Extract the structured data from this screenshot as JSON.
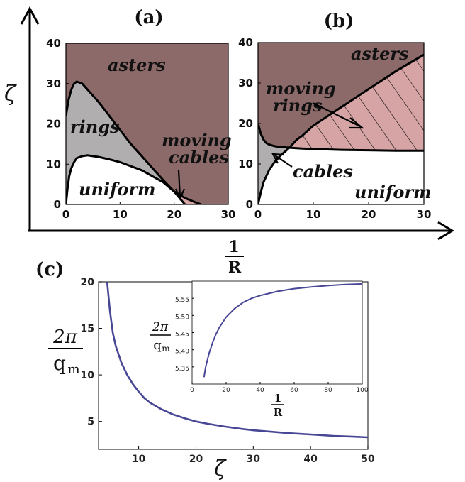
{
  "panel_labels": {
    "a": "(a)",
    "b": "(b)",
    "c": "(c)"
  },
  "axes": {
    "zeta": "ζ",
    "one": "1",
    "R": "R",
    "two_pi": "2π",
    "q_m": "q",
    "q_m_sub": "m"
  },
  "regions": {
    "asters": "asters",
    "rings": "rings",
    "uniform": "uniform",
    "moving": "moving",
    "cables": "cables",
    "moving_rings_line2": "rings"
  },
  "colors": {
    "asters": "#8c6a69",
    "rings_cables": "#b0aeae",
    "uniform": "#ffffff",
    "moving": "#d6a4a5",
    "curve": "#474796",
    "boundary": "#000000"
  },
  "chart_data": [
    {
      "id": "a",
      "type": "area",
      "title": "(a)",
      "xlim": [
        0,
        30
      ],
      "ylim": [
        0,
        40
      ],
      "xticks": [
        "0",
        "10",
        "20",
        "30"
      ],
      "yticks": [
        "0",
        "10",
        "20",
        "30",
        "40"
      ],
      "upper_boundary": {
        "x": [
          0,
          0.5,
          1,
          1.5,
          2,
          3,
          4,
          6,
          8,
          10,
          12,
          14,
          16,
          18,
          20,
          22,
          24,
          25
        ],
        "y": [
          22,
          26,
          28.5,
          30,
          30.5,
          30,
          28.5,
          25.5,
          22,
          18.5,
          15,
          12,
          9,
          6,
          3.2,
          1.6,
          0.5,
          0
        ]
      },
      "lower_boundary": {
        "x": [
          0,
          0.3,
          0.6,
          1,
          1.5,
          2,
          3,
          4,
          6,
          8,
          10,
          12,
          14,
          16,
          18,
          20,
          21,
          22
        ],
        "y": [
          0,
          4,
          7,
          9,
          10.5,
          11.5,
          12,
          12.2,
          11.8,
          11.2,
          10.5,
          9.5,
          8.5,
          7,
          5.5,
          3.2,
          1.6,
          0
        ]
      },
      "regions": [
        "asters",
        "rings",
        "uniform",
        "moving cables"
      ]
    },
    {
      "id": "b",
      "type": "area",
      "title": "(b)",
      "xlim": [
        0,
        30
      ],
      "ylim": [
        0,
        40
      ],
      "xticks": [
        "0",
        "10",
        "20",
        "30"
      ],
      "yticks": [
        "0",
        "10",
        "20",
        "30",
        "40"
      ],
      "aster_boundary": {
        "x": [
          0,
          0.5,
          1,
          1.5,
          2,
          3,
          4,
          5,
          6,
          8,
          10,
          15,
          20,
          25,
          30
        ],
        "y": [
          20,
          17.5,
          16,
          15.2,
          14.8,
          14.4,
          14.2,
          14.1,
          14,
          13.8,
          13.7,
          13.5,
          13.4,
          13.3,
          13.3
        ]
      },
      "ring_boundary": {
        "x": [
          0,
          0.5,
          1,
          2,
          3,
          4,
          5,
          6,
          7,
          8,
          10,
          15,
          20,
          25,
          30
        ],
        "y": [
          0,
          3,
          5.5,
          8.5,
          10.5,
          12,
          13.2,
          14.5,
          16,
          17,
          19.5,
          24,
          28.5,
          33,
          37
        ]
      },
      "regions": [
        "asters",
        "moving rings",
        "cables",
        "uniform"
      ]
    },
    {
      "id": "c",
      "type": "line",
      "title": "(c)",
      "xlim": [
        3,
        50
      ],
      "ylim": [
        2,
        20
      ],
      "xticks": [
        "10",
        "20",
        "30",
        "40",
        "50"
      ],
      "yticks": [
        "5",
        "10",
        "15",
        "20"
      ],
      "x": [
        4.5,
        5,
        5.5,
        6,
        7,
        8,
        9,
        10,
        11,
        12,
        14,
        16,
        18,
        20,
        22,
        25,
        28,
        30,
        33,
        36,
        40,
        44,
        47,
        50
      ],
      "y": [
        20,
        16.8,
        14.5,
        13.1,
        11.3,
        10,
        9,
        8.2,
        7.5,
        7,
        6.3,
        5.75,
        5.35,
        5,
        4.75,
        4.45,
        4.2,
        4.05,
        3.9,
        3.75,
        3.6,
        3.45,
        3.38,
        3.3
      ],
      "inset": {
        "xlim": [
          0,
          100
        ],
        "ylim": [
          5.3,
          5.6
        ],
        "xticks": [
          "0",
          "20",
          "40",
          "60",
          "80",
          "100"
        ],
        "yticks": [
          "5.35",
          "5.40",
          "5.45",
          "5.50",
          "5.55"
        ],
        "x": [
          7,
          8,
          9,
          10,
          12,
          14,
          16,
          18,
          20,
          25,
          30,
          35,
          40,
          50,
          60,
          70,
          80,
          90,
          100
        ],
        "y": [
          5.32,
          5.35,
          5.37,
          5.39,
          5.42,
          5.445,
          5.465,
          5.48,
          5.495,
          5.52,
          5.538,
          5.55,
          5.558,
          5.57,
          5.578,
          5.583,
          5.587,
          5.59,
          5.592
        ]
      }
    }
  ]
}
